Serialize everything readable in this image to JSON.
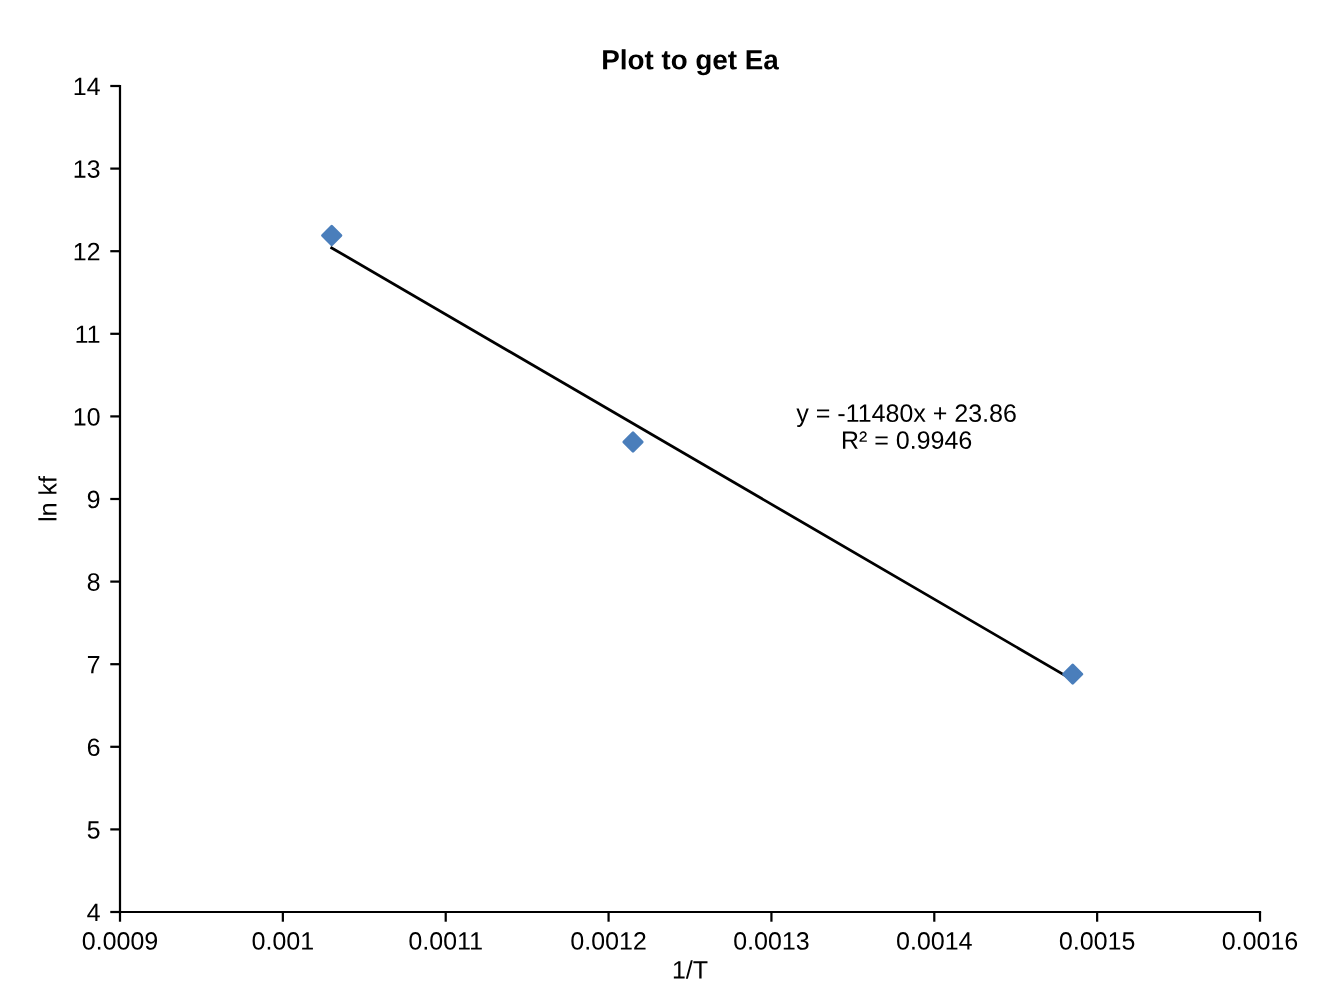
{
  "chart_data": {
    "type": "scatter",
    "title": "Plot to get Ea",
    "xlabel": "1/T",
    "ylabel": "ln kf",
    "series": [
      {
        "color": "#4a7ebb",
        "marker": "diamond",
        "x": [
          0.00103,
          0.001215,
          0.001485
        ],
        "values": [
          12.19,
          9.69,
          6.88
        ]
      },
      {
        "type": "line",
        "color": "#000000",
        "marker": "none",
        "line_style": "solid",
        "x": [
          0.00103,
          0.001485
        ],
        "values": [
          12.04,
          6.81
        ]
      }
    ],
    "annotations": [
      "y = -11480x + 23.86\nR² = 0.9946"
    ],
    "xlim": [
      0.0009,
      0.0016
    ],
    "xticks": [
      0.0009,
      0.001,
      0.0011,
      0.0012,
      0.0013,
      0.0014,
      0.0015,
      0.0016
    ],
    "ylim": [
      4,
      14
    ],
    "yticks": [
      4,
      5,
      6,
      7,
      8,
      9,
      10,
      11,
      12,
      13,
      14
    ],
    "grid": false,
    "legend": false
  }
}
